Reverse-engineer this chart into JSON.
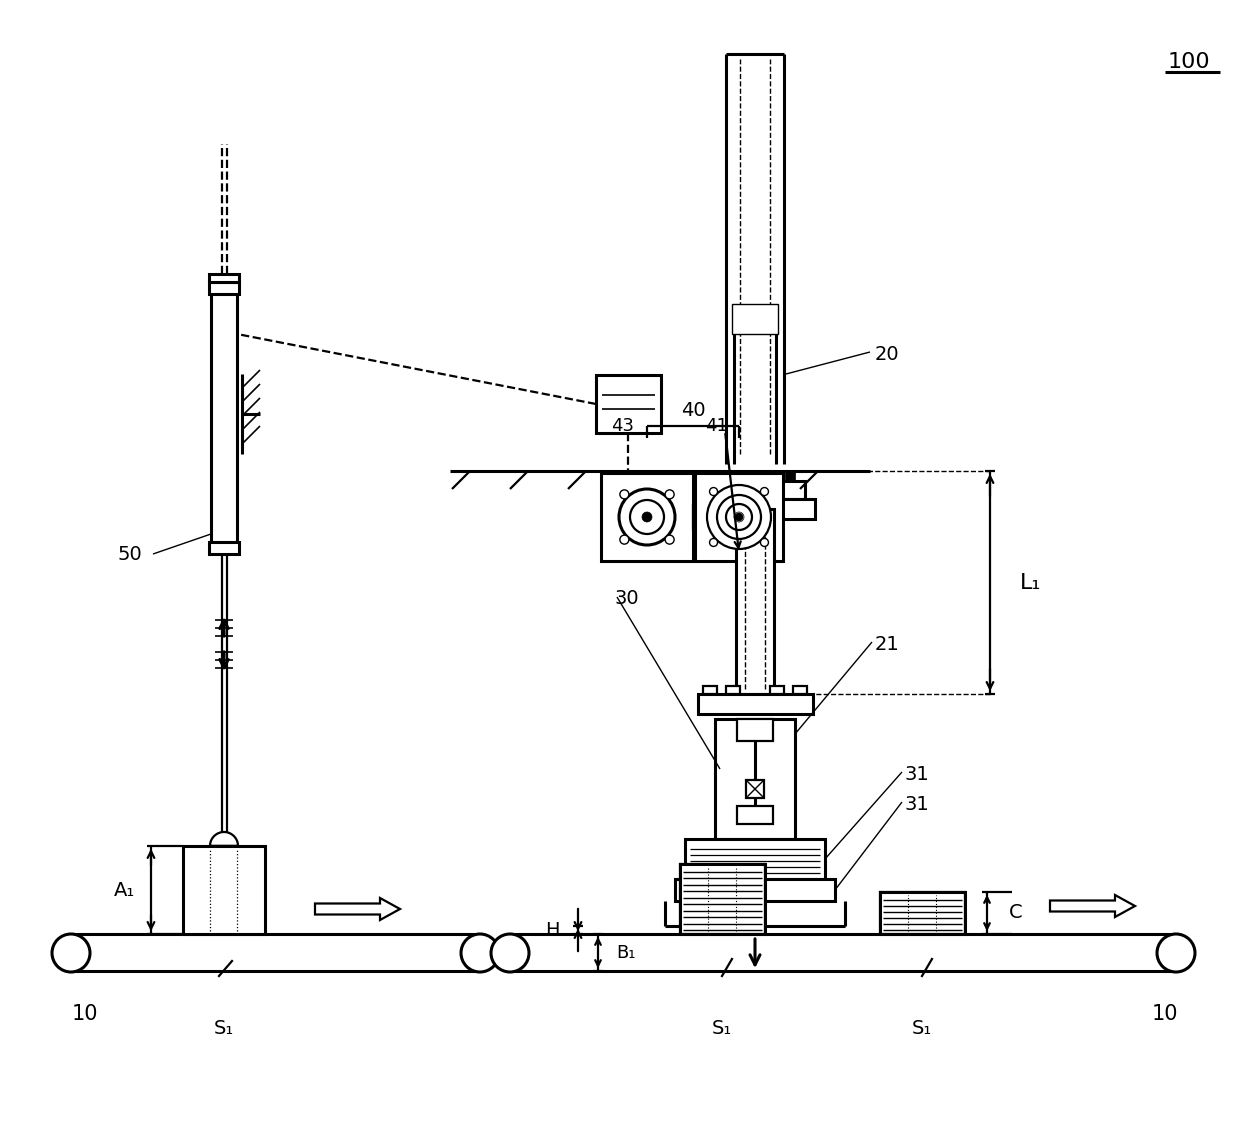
{
  "bg_color": "#ffffff",
  "lc": "#000000",
  "labels": {
    "100": "100",
    "10_left": "10",
    "10_right": "10",
    "20": "20",
    "21": "21",
    "30": "30",
    "31_a": "31",
    "31_b": "31",
    "40": "40",
    "41": "41",
    "43": "43",
    "50": "50",
    "A1": "A₁",
    "B1": "B₁",
    "C": "C",
    "H": "H",
    "L1": "L₁",
    "S1_left": "S₁",
    "S1_mid": "S₁",
    "S1_right": "S₁"
  },
  "figsize": [
    12.4,
    11.34
  ],
  "dpi": 100
}
